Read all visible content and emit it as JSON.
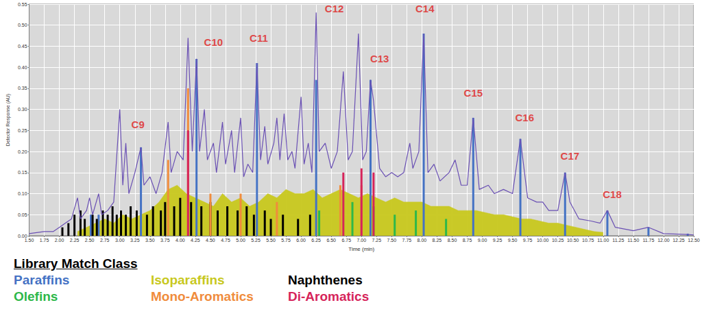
{
  "chart_data": {
    "type": "line",
    "x_label": "Time (min)",
    "y_label": "Detector Response (AU)",
    "xlim": [
      1.5,
      12.5
    ],
    "xticks": [
      {
        "value": 1.5,
        "label": "1.50"
      },
      {
        "value": 1.75,
        "label": "1.75"
      },
      {
        "value": 2,
        "label": "2.00"
      },
      {
        "value": 2.25,
        "label": "2.25"
      },
      {
        "value": 2.5,
        "label": "2.50"
      },
      {
        "value": 2.75,
        "label": "2.75"
      },
      {
        "value": 3,
        "label": "3.00"
      },
      {
        "value": 3.25,
        "label": "3.25"
      },
      {
        "value": 3.5,
        "label": "3.50"
      },
      {
        "value": 3.75,
        "label": "3.75"
      },
      {
        "value": 4,
        "label": "4.00"
      },
      {
        "value": 4.25,
        "label": "4.25"
      },
      {
        "value": 4.5,
        "label": "4.50"
      },
      {
        "value": 4.75,
        "label": "4.75"
      },
      {
        "value": 5,
        "label": "5.00"
      },
      {
        "value": 5.25,
        "label": "5.25"
      },
      {
        "value": 5.5,
        "label": "5.50"
      },
      {
        "value": 5.75,
        "label": "5.75"
      },
      {
        "value": 6,
        "label": "6.00"
      },
      {
        "value": 6.25,
        "label": "6.25"
      },
      {
        "value": 6.5,
        "label": "6.50"
      },
      {
        "value": 6.75,
        "label": "6.75"
      },
      {
        "value": 7,
        "label": "7.00"
      },
      {
        "value": 7.25,
        "label": "7.25"
      },
      {
        "value": 7.5,
        "label": "7.50"
      },
      {
        "value": 7.75,
        "label": "7.75"
      },
      {
        "value": 8,
        "label": "8.00"
      },
      {
        "value": 8.25,
        "label": "8.25"
      },
      {
        "value": 8.5,
        "label": "8.50"
      },
      {
        "value": 8.75,
        "label": "8.75"
      },
      {
        "value": 9,
        "label": "9.00"
      },
      {
        "value": 9.25,
        "label": "9.25"
      },
      {
        "value": 9.5,
        "label": "9.50"
      },
      {
        "value": 9.75,
        "label": "9.75"
      },
      {
        "value": 10,
        "label": "10.00"
      },
      {
        "value": 10.25,
        "label": "10.25"
      },
      {
        "value": 10.5,
        "label": "10.50"
      },
      {
        "value": 10.75,
        "label": "10.75"
      },
      {
        "value": 11,
        "label": "11.00"
      },
      {
        "value": 11.25,
        "label": "11.25"
      },
      {
        "value": 11.5,
        "label": "11.50"
      },
      {
        "value": 11.75,
        "label": "11.75"
      },
      {
        "value": 12,
        "label": "12.00"
      },
      {
        "value": 12.25,
        "label": "12.25"
      },
      {
        "value": 12.5,
        "label": "12.50"
      }
    ],
    "ylim": [
      0,
      0.55
    ],
    "yticks": [
      {
        "value": 0,
        "label": "0.00"
      },
      {
        "value": 0.05,
        "label": "0.05"
      },
      {
        "value": 0.1,
        "label": "0.10"
      },
      {
        "value": 0.15,
        "label": "0.15"
      },
      {
        "value": 0.2,
        "label": "0.20"
      },
      {
        "value": 0.25,
        "label": "0.25"
      },
      {
        "value": 0.3,
        "label": "0.30"
      },
      {
        "value": 0.35,
        "label": "0.35"
      },
      {
        "value": 0.4,
        "label": "0.40"
      },
      {
        "value": 0.45,
        "label": "0.45"
      },
      {
        "value": 0.5,
        "label": "0.50"
      },
      {
        "value": 0.55,
        "label": "0.55"
      }
    ],
    "grid": true,
    "legend": "bottom left",
    "legend_title": "Library Match Class",
    "series": [
      {
        "name": "Paraffins",
        "color": "#4472c4",
        "type": "bar",
        "x": [
          2.52,
          2.65,
          3.35,
          4.27,
          5.27,
          6.25,
          7.15,
          8.03,
          8.85,
          9.63,
          10.37,
          11.07,
          11.75,
          12.4
        ],
        "values": [
          0.05,
          0.05,
          0.21,
          0.42,
          0.41,
          0.37,
          0.37,
          0.48,
          0.28,
          0.23,
          0.15,
          0.06,
          0.02,
          0.005
        ]
      },
      {
        "name": "Isoparaffins",
        "color": "#c8c81e",
        "type": "area",
        "x": [
          2.3,
          2.45,
          2.6,
          2.75,
          2.9,
          3.05,
          3.2,
          3.35,
          3.5,
          3.65,
          3.8,
          3.95,
          4.1,
          4.25,
          4.4,
          4.55,
          4.7,
          4.85,
          5.0,
          5.15,
          5.3,
          5.45,
          5.6,
          5.75,
          5.9,
          6.05,
          6.2,
          6.35,
          6.5,
          6.65,
          6.8,
          6.95,
          7.1,
          7.25,
          7.4,
          7.55,
          7.7,
          7.85,
          8.0,
          8.15,
          8.3,
          8.45,
          8.6,
          8.75,
          8.9,
          9.05,
          9.2,
          9.35,
          9.5,
          9.65,
          9.8,
          9.95,
          10.1,
          10.25,
          10.4,
          10.55,
          10.7,
          10.85,
          11.0
        ],
        "values": [
          0.01,
          0.02,
          0.03,
          0.04,
          0.03,
          0.05,
          0.04,
          0.05,
          0.06,
          0.08,
          0.11,
          0.12,
          0.1,
          0.09,
          0.08,
          0.07,
          0.1,
          0.08,
          0.09,
          0.07,
          0.08,
          0.1,
          0.09,
          0.11,
          0.1,
          0.1,
          0.11,
          0.09,
          0.1,
          0.11,
          0.1,
          0.09,
          0.1,
          0.09,
          0.08,
          0.09,
          0.08,
          0.08,
          0.08,
          0.07,
          0.07,
          0.07,
          0.06,
          0.06,
          0.06,
          0.055,
          0.05,
          0.05,
          0.045,
          0.04,
          0.04,
          0.035,
          0.03,
          0.03,
          0.025,
          0.02,
          0.015,
          0.01,
          0.008
        ]
      },
      {
        "name": "Naphthenes",
        "color": "#000000",
        "type": "bar",
        "x": [
          2.05,
          2.15,
          2.25,
          2.35,
          2.42,
          2.55,
          2.62,
          2.72,
          2.8,
          2.88,
          2.95,
          3.02,
          3.1,
          3.18,
          3.28,
          3.45,
          3.55,
          3.68,
          3.75,
          3.9,
          4.0,
          4.18,
          4.35,
          4.5,
          4.62,
          4.78,
          4.95,
          5.1,
          5.22,
          5.4,
          5.5,
          5.7,
          5.95,
          6.15
        ],
        "values": [
          0.02,
          0.03,
          0.05,
          0.06,
          0.04,
          0.05,
          0.04,
          0.06,
          0.05,
          0.07,
          0.05,
          0.06,
          0.05,
          0.07,
          0.06,
          0.05,
          0.07,
          0.06,
          0.08,
          0.07,
          0.09,
          0.08,
          0.07,
          0.08,
          0.06,
          0.07,
          0.06,
          0.07,
          0.05,
          0.06,
          0.04,
          0.05,
          0.04,
          0.05
        ]
      },
      {
        "name": "Olefins",
        "color": "#2db84a",
        "type": "bar",
        "x": [
          6.3,
          6.85,
          7.2,
          7.55,
          7.9,
          8.4
        ],
        "values": [
          0.06,
          0.08,
          0.07,
          0.05,
          0.06,
          0.04
        ]
      },
      {
        "name": "Mono-Aromatics",
        "color": "#f08c3c",
        "type": "bar",
        "x": [
          3.8,
          4.13,
          4.5,
          5.0,
          5.6,
          6.65,
          7.0
        ],
        "values": [
          0.18,
          0.35,
          0.1,
          0.1,
          0.08,
          0.12,
          0.12
        ]
      },
      {
        "name": "Di-Aromatics",
        "color": "#d6245a",
        "type": "bar",
        "x": [
          4.13,
          6.7,
          7.0,
          7.2
        ],
        "values": [
          0.25,
          0.15,
          0.16,
          0.15
        ]
      },
      {
        "color": "#6a50b4",
        "type": "line",
        "x": [
          1.5,
          1.75,
          1.9,
          2.0,
          2.1,
          2.2,
          2.3,
          2.35,
          2.45,
          2.5,
          2.55,
          2.65,
          2.7,
          2.8,
          2.9,
          3.0,
          3.05,
          3.1,
          3.15,
          3.25,
          3.35,
          3.4,
          3.5,
          3.6,
          3.7,
          3.8,
          3.85,
          3.95,
          4.05,
          4.13,
          4.2,
          4.27,
          4.32,
          4.4,
          4.45,
          4.55,
          4.6,
          4.7,
          4.75,
          4.85,
          4.9,
          5.0,
          5.05,
          5.12,
          5.2,
          5.27,
          5.33,
          5.4,
          5.45,
          5.55,
          5.6,
          5.65,
          5.72,
          5.78,
          5.85,
          5.9,
          6.0,
          6.05,
          6.12,
          6.18,
          6.25,
          6.3,
          6.4,
          6.5,
          6.6,
          6.7,
          6.78,
          6.85,
          6.95,
          7.02,
          7.08,
          7.15,
          7.2,
          7.3,
          7.4,
          7.5,
          7.6,
          7.7,
          7.8,
          7.85,
          7.95,
          8.03,
          8.1,
          8.2,
          8.3,
          8.45,
          8.55,
          8.65,
          8.75,
          8.85,
          8.95,
          9.1,
          9.2,
          9.35,
          9.5,
          9.63,
          9.75,
          9.9,
          10.0,
          10.1,
          10.25,
          10.37,
          10.45,
          10.6,
          10.8,
          10.95,
          11.07,
          11.2,
          11.5,
          11.75,
          12.0,
          12.4,
          12.5
        ],
        "values": [
          0.005,
          0.01,
          0.01,
          0.02,
          0.03,
          0.04,
          0.09,
          0.04,
          0.06,
          0.09,
          0.05,
          0.1,
          0.05,
          0.06,
          0.08,
          0.3,
          0.12,
          0.22,
          0.1,
          0.15,
          0.21,
          0.12,
          0.14,
          0.1,
          0.15,
          0.27,
          0.15,
          0.2,
          0.18,
          0.47,
          0.2,
          0.42,
          0.2,
          0.3,
          0.18,
          0.22,
          0.15,
          0.27,
          0.17,
          0.25,
          0.15,
          0.28,
          0.14,
          0.17,
          0.15,
          0.41,
          0.18,
          0.26,
          0.17,
          0.22,
          0.28,
          0.18,
          0.29,
          0.18,
          0.2,
          0.16,
          0.33,
          0.17,
          0.22,
          0.15,
          0.53,
          0.2,
          0.22,
          0.16,
          0.2,
          0.39,
          0.18,
          0.2,
          0.48,
          0.18,
          0.2,
          0.37,
          0.32,
          0.16,
          0.14,
          0.15,
          0.14,
          0.15,
          0.22,
          0.16,
          0.2,
          0.48,
          0.15,
          0.17,
          0.13,
          0.15,
          0.18,
          0.12,
          0.12,
          0.28,
          0.11,
          0.12,
          0.1,
          0.11,
          0.1,
          0.23,
          0.09,
          0.08,
          0.08,
          0.06,
          0.06,
          0.15,
          0.08,
          0.04,
          0.035,
          0.03,
          0.06,
          0.02,
          0.012,
          0.02,
          0.005,
          0.003,
          0.002
        ]
      }
    ],
    "annotations": [
      {
        "text": "C9",
        "x": 3.3,
        "y": 0.265
      },
      {
        "text": "C10",
        "x": 4.55,
        "y": 0.46
      },
      {
        "text": "C11",
        "x": 5.3,
        "y": 0.47
      },
      {
        "text": "C12",
        "x": 6.55,
        "y": 0.54
      },
      {
        "text": "C13",
        "x": 7.3,
        "y": 0.42
      },
      {
        "text": "C14",
        "x": 8.05,
        "y": 0.54
      },
      {
        "text": "C15",
        "x": 8.85,
        "y": 0.34
      },
      {
        "text": "C16",
        "x": 9.7,
        "y": 0.28
      },
      {
        "text": "C17",
        "x": 10.45,
        "y": 0.19
      },
      {
        "text": "C18",
        "x": 11.15,
        "y": 0.098
      }
    ]
  }
}
